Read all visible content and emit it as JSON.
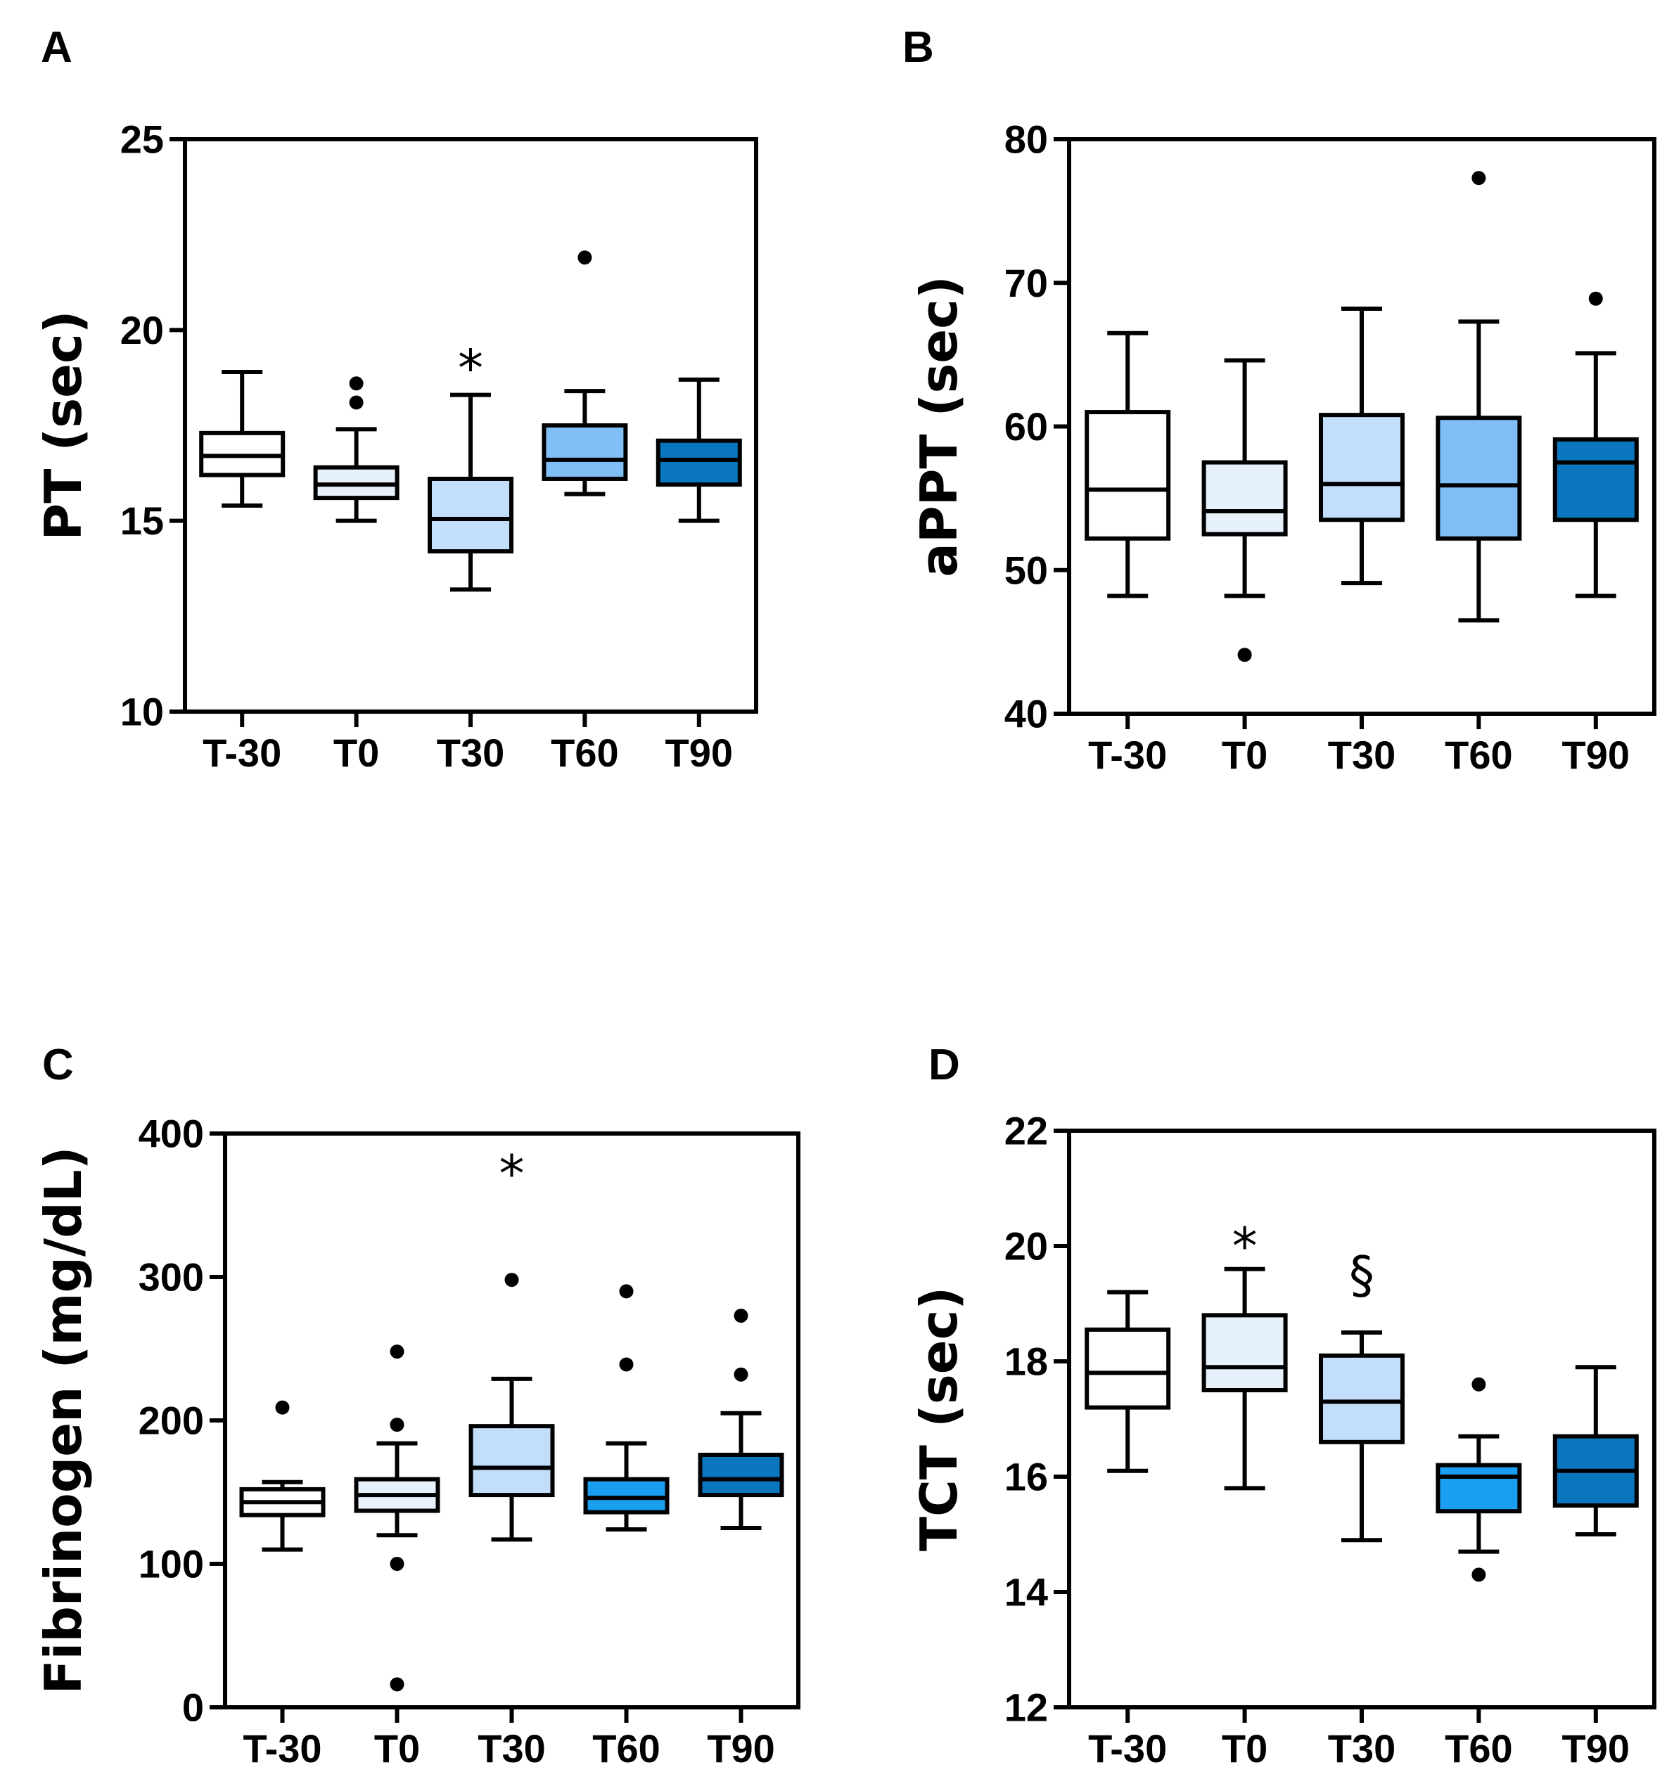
{
  "chart_data": [
    {
      "id": "A",
      "type": "boxplot",
      "panel_label": "A",
      "ylabel": "PT (sec)",
      "ylim": [
        10,
        25
      ],
      "yticks": [
        10,
        15,
        20,
        25
      ],
      "categories": [
        "T-30",
        "T0",
        "T30",
        "T60",
        "T90"
      ],
      "colors": [
        "#ffffff",
        "#e6f1fc",
        "#c3defa",
        "#7fbff5",
        "#0a76be"
      ],
      "boxes": [
        {
          "whisker_low": 15.4,
          "q1": 16.2,
          "median": 16.7,
          "q3": 17.3,
          "whisker_high": 18.9,
          "outliers": []
        },
        {
          "whisker_low": 15.0,
          "q1": 15.6,
          "median": 15.95,
          "q3": 16.4,
          "whisker_high": 17.4,
          "outliers": [
            18.1,
            18.6
          ]
        },
        {
          "whisker_low": 13.2,
          "q1": 14.2,
          "median": 15.05,
          "q3": 16.1,
          "whisker_high": 18.3,
          "outliers": []
        },
        {
          "whisker_low": 15.7,
          "q1": 16.1,
          "median": 16.6,
          "q3": 17.5,
          "whisker_high": 18.4,
          "outliers": [
            21.9
          ]
        },
        {
          "whisker_low": 15.0,
          "q1": 15.95,
          "median": 16.6,
          "q3": 17.1,
          "whisker_high": 18.7,
          "outliers": []
        }
      ],
      "annotations": [
        {
          "text": "*",
          "category": "T30",
          "y": 19.0
        }
      ]
    },
    {
      "id": "B",
      "type": "boxplot",
      "panel_label": "B",
      "ylabel": "aPPT (sec)",
      "ylim": [
        40,
        80
      ],
      "yticks": [
        40,
        50,
        60,
        70,
        80
      ],
      "categories": [
        "T-30",
        "T0",
        "T30",
        "T60",
        "T90"
      ],
      "colors": [
        "#ffffff",
        "#e6f1fc",
        "#c3defa",
        "#7fbff5",
        "#0a76be"
      ],
      "boxes": [
        {
          "whisker_low": 48.2,
          "q1": 52.2,
          "median": 55.6,
          "q3": 61.0,
          "whisker_high": 66.5,
          "outliers": []
        },
        {
          "whisker_low": 48.2,
          "q1": 52.5,
          "median": 54.1,
          "q3": 57.5,
          "whisker_high": 64.6,
          "outliers": [
            44.1
          ]
        },
        {
          "whisker_low": 49.1,
          "q1": 53.5,
          "median": 56.0,
          "q3": 60.8,
          "whisker_high": 68.2,
          "outliers": []
        },
        {
          "whisker_low": 46.5,
          "q1": 52.2,
          "median": 55.9,
          "q3": 60.6,
          "whisker_high": 67.3,
          "outliers": [
            77.3
          ]
        },
        {
          "whisker_low": 48.2,
          "q1": 53.5,
          "median": 57.5,
          "q3": 59.1,
          "whisker_high": 65.1,
          "outliers": [
            68.9
          ]
        }
      ],
      "annotations": []
    },
    {
      "id": "C",
      "type": "boxplot",
      "panel_label": "C",
      "ylabel": "Fibrinogen (mg/dL)",
      "ylim": [
        0,
        400
      ],
      "yticks": [
        0,
        100,
        200,
        300,
        400
      ],
      "categories": [
        "T-30",
        "T0",
        "T30",
        "T60",
        "T90"
      ],
      "colors": [
        "#ffffff",
        "#e6f1fc",
        "#c3defa",
        "#1a9ef0",
        "#0a76be"
      ],
      "boxes": [
        {
          "whisker_low": 110,
          "q1": 134,
          "median": 143,
          "q3": 152,
          "whisker_high": 157,
          "outliers": [
            209
          ]
        },
        {
          "whisker_low": 120,
          "q1": 137,
          "median": 148,
          "q3": 159,
          "whisker_high": 184,
          "outliers": [
            16,
            100,
            197,
            248
          ]
        },
        {
          "whisker_low": 117,
          "q1": 148,
          "median": 167,
          "q3": 196,
          "whisker_high": 229,
          "outliers": [
            298
          ]
        },
        {
          "whisker_low": 124,
          "q1": 136,
          "median": 146,
          "q3": 159,
          "whisker_high": 184,
          "outliers": [
            239,
            290
          ]
        },
        {
          "whisker_low": 125,
          "q1": 148,
          "median": 159,
          "q3": 176,
          "whisker_high": 205,
          "outliers": [
            232,
            273
          ]
        }
      ],
      "annotations": [
        {
          "text": "*",
          "category": "T30",
          "y": 372
        }
      ]
    },
    {
      "id": "D",
      "type": "boxplot",
      "panel_label": "D",
      "ylabel": "TCT (sec)",
      "ylim": [
        12,
        22
      ],
      "yticks": [
        12,
        14,
        16,
        18,
        20,
        22
      ],
      "categories": [
        "T-30",
        "T0",
        "T30",
        "T60",
        "T90"
      ],
      "colors": [
        "#ffffff",
        "#e6f1fc",
        "#c3defa",
        "#1a9ef0",
        "#0a76be"
      ],
      "boxes": [
        {
          "whisker_low": 16.1,
          "q1": 17.2,
          "median": 17.8,
          "q3": 18.55,
          "whisker_high": 19.2,
          "outliers": []
        },
        {
          "whisker_low": 15.8,
          "q1": 17.5,
          "median": 17.9,
          "q3": 18.8,
          "whisker_high": 19.6,
          "outliers": []
        },
        {
          "whisker_low": 14.9,
          "q1": 16.6,
          "median": 17.3,
          "q3": 18.1,
          "whisker_high": 18.5,
          "outliers": []
        },
        {
          "whisker_low": 14.7,
          "q1": 15.4,
          "median": 16.0,
          "q3": 16.2,
          "whisker_high": 16.7,
          "outliers": [
            14.3,
            17.6
          ]
        },
        {
          "whisker_low": 15.0,
          "q1": 15.5,
          "median": 16.1,
          "q3": 16.7,
          "whisker_high": 17.9,
          "outliers": []
        }
      ],
      "annotations": [
        {
          "text": "*",
          "category": "T0",
          "y": 20.0
        },
        {
          "text": "§",
          "category": "T30",
          "y": 19.5
        }
      ]
    }
  ]
}
